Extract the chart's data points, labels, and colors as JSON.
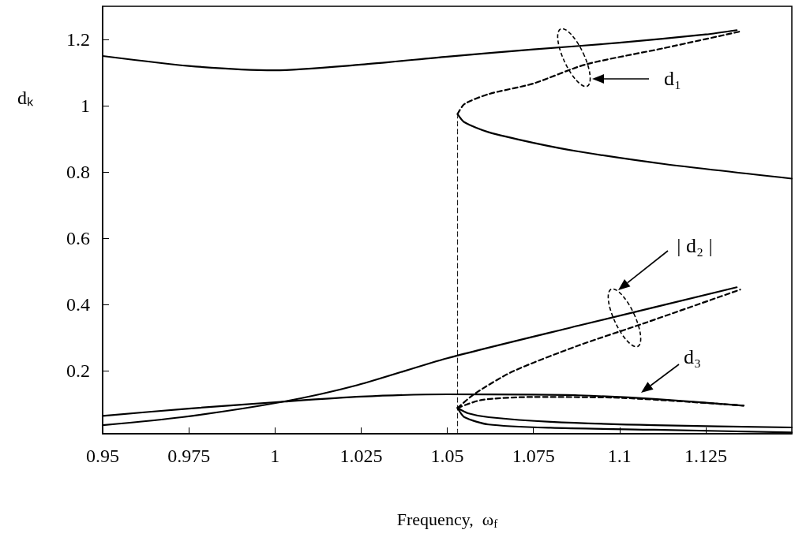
{
  "chart_data": {
    "type": "line",
    "xlabel": "Frequency,  ω$_{f}$",
    "ylabel": "dₖ",
    "xlim": [
      0.95,
      1.15
    ],
    "ylim": [
      0.01,
      1.3
    ],
    "xticks": [
      0.95,
      0.975,
      1,
      1.025,
      1.05,
      1.075,
      1.1,
      1.125
    ],
    "yticks": [
      0.2,
      0.4,
      0.6,
      0.8,
      1,
      1.2
    ],
    "grid": false,
    "marker": "none",
    "series": [
      {
        "color": "#000000",
        "line_style": "solid",
        "x": [
          0.95,
          0.975,
          1.0,
          1.025,
          1.05,
          1.075,
          1.1,
          1.125,
          1.134
        ],
        "values": [
          1.15,
          1.12,
          1.107,
          1.124,
          1.148,
          1.17,
          1.19,
          1.215,
          1.228
        ]
      },
      {
        "color": "#000000",
        "line_style": "dashed",
        "x": [
          1.053,
          1.055,
          1.062,
          1.075,
          1.09,
          1.113,
          1.135
        ],
        "values": [
          0.975,
          1.005,
          1.035,
          1.067,
          1.124,
          1.174,
          1.224
        ]
      },
      {
        "color": "#000000",
        "line_style": "solid",
        "x": [
          1.053,
          1.055,
          1.062,
          1.075,
          1.088,
          1.113,
          1.15
        ],
        "values": [
          0.975,
          0.95,
          0.92,
          0.888,
          0.862,
          0.824,
          0.78
        ]
      },
      {
        "color": "#000000",
        "line_style": "solid",
        "x": [
          0.95,
          0.973,
          1.0025,
          1.024,
          1.05,
          1.088,
          1.134
        ],
        "values": [
          0.036,
          0.06,
          0.107,
          0.157,
          0.238,
          0.336,
          0.452
        ]
      },
      {
        "color": "#000000",
        "line_style": "dashed",
        "x": [
          1.053,
          1.058,
          1.069,
          1.088,
          1.107,
          1.135
        ],
        "values": [
          0.088,
          0.131,
          0.198,
          0.276,
          0.343,
          0.445
        ]
      },
      {
        "color": "#000000",
        "line_style": "solid",
        "x": [
          0.95,
          0.975,
          1.0025,
          1.025,
          1.05,
          1.075,
          1.088,
          1.11,
          1.136
        ],
        "values": [
          0.064,
          0.086,
          0.107,
          0.122,
          0.129,
          0.128,
          0.126,
          0.115,
          0.095
        ]
      },
      {
        "color": "#000000",
        "line_style": "dashed",
        "x": [
          1.053,
          1.06,
          1.075,
          1.101,
          1.136
        ],
        "values": [
          0.088,
          0.112,
          0.121,
          0.118,
          0.095
        ]
      },
      {
        "color": "#000000",
        "line_style": "solid",
        "x": [
          1.053,
          1.056,
          1.062,
          1.08,
          1.11,
          1.15
        ],
        "values": [
          0.088,
          0.072,
          0.06,
          0.046,
          0.036,
          0.029
        ]
      },
      {
        "color": "#000000",
        "line_style": "solid",
        "x": [
          1.053,
          1.055,
          1.062,
          1.08,
          1.11,
          1.15
        ],
        "values": [
          0.088,
          0.06,
          0.038,
          0.028,
          0.022,
          0.014
        ]
      },
      {
        "color": "#000000",
        "line_style": "dashed",
        "x": [
          1.053,
          1.053
        ],
        "values": [
          0.01,
          0.975
        ]
      }
    ],
    "annotations": [
      "d₁",
      "| d₂ |",
      "d₃"
    ]
  }
}
